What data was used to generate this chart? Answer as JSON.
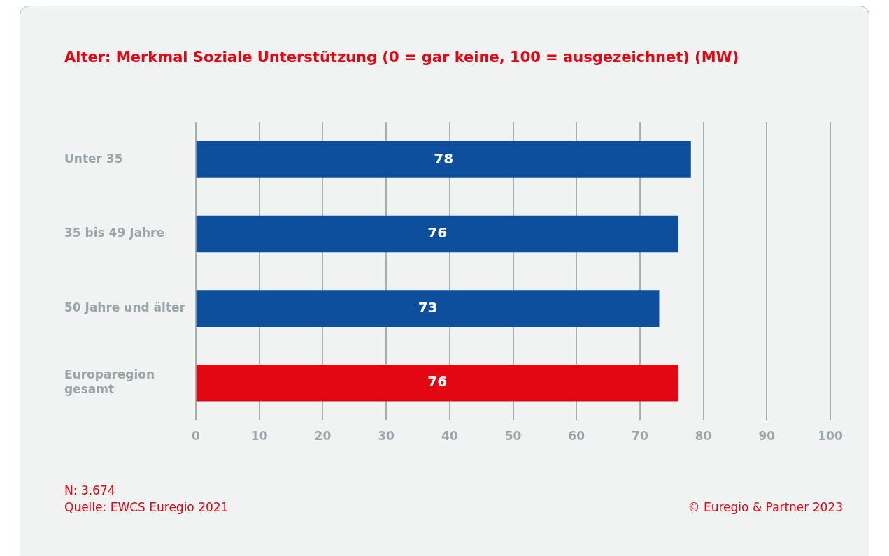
{
  "chart_data": {
    "type": "bar",
    "orientation": "horizontal",
    "title": "Alter: Merkmal Soziale Unterstützung (0 = gar keine, 100 = ausgezeichnet) (MW)",
    "categories": [
      "Unter 35",
      "35 bis 49 Jahre",
      "50 Jahre und älter",
      "Europaregion gesamt"
    ],
    "values": [
      78,
      76,
      73,
      76
    ],
    "colors": [
      "#0d4f9c",
      "#0d4f9c",
      "#0d4f9c",
      "#e30613"
    ],
    "xlim": [
      0,
      100
    ],
    "xticks": [
      0,
      10,
      20,
      30,
      40,
      50,
      60,
      70,
      80,
      90,
      100
    ],
    "grid": "x",
    "data_labels": true,
    "annotations": [
      "N: 3.674",
      "Quelle: EWCS Euregio 2021",
      "© Euregio & Partner 2023"
    ]
  }
}
